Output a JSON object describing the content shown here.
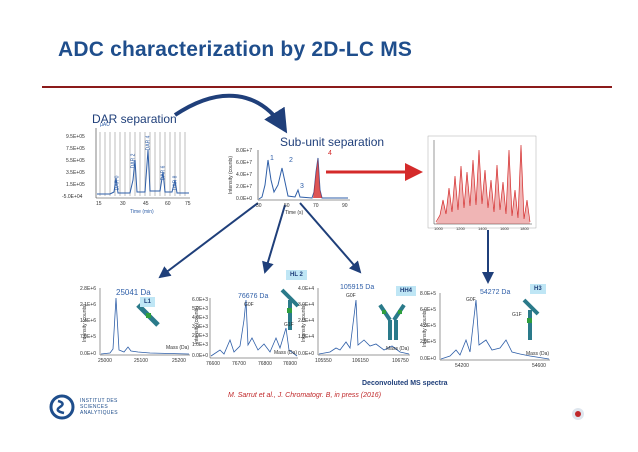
{
  "title": "ADC characterization by 2D-LC MS",
  "labels": {
    "dar": "DAR separation",
    "subunit": "Sub-unit separation",
    "deconv": "Deconvoluted MS spectra",
    "citation": "M. Sarrut et al., J. Chromatogr. B, in press (2016)"
  },
  "dar_chart": {
    "unit": "µAU",
    "yticks": [
      "9.5E+05",
      "7.5E+05",
      "5.5E+05",
      "3.5E+05",
      "1.5E+05",
      "-5.0E+04"
    ],
    "xticks": [
      "15",
      "30",
      "45",
      "60",
      "75"
    ],
    "xlabel": "Time (min)",
    "peaks": [
      "DAR 0",
      "DAR 2",
      "DAR 4",
      "DAR 6",
      "DAR 8"
    ]
  },
  "subunit_chart": {
    "yticks": [
      "8.0E+7",
      "6.0E+7",
      "4.0E+7",
      "2.0E+7",
      "0.0E+0"
    ],
    "xticks": [
      "30",
      "50",
      "70",
      "90"
    ],
    "xlabel": "Time (s)",
    "ylabel": "Intensity (counts)",
    "peaks": [
      "1",
      "2",
      "3",
      "4"
    ]
  },
  "ms_panels": [
    {
      "mass": "25041 Da",
      "tag": "L1",
      "yticks": [
        "2.8E+6",
        "2.1E+6",
        "1.4E+6",
        "7.0E+5",
        "0.0E+0"
      ],
      "xticks": [
        "25000",
        "25100",
        "25200"
      ],
      "xlabel": "Mass (Da)",
      "ylabel": "Intensity (counts)",
      "glycans": []
    },
    {
      "mass": "76676 Da",
      "tag": "HL 2",
      "yticks": [
        "6.0E+3",
        "5.0E+3",
        "4.0E+3",
        "3.0E+3",
        "2.0E+3",
        "1.0E+3",
        "0.0E+0"
      ],
      "xticks": [
        "76600",
        "76700",
        "76800",
        "76900"
      ],
      "xlabel": "Mass (Da)",
      "ylabel": "Intensity (counts)",
      "glycans": [
        "G0F",
        "G1F"
      ]
    },
    {
      "mass": "105915 Da",
      "tag": "HH4",
      "yticks": [
        "4.0E+4",
        "3.0E+4",
        "2.0E+4",
        "1.0E+4",
        "0.0E+0"
      ],
      "xticks": [
        "105550",
        "106150",
        "106750"
      ],
      "xlabel": "Mass (Da)",
      "ylabel": "Intensity (counts)",
      "glycans": [
        "G0F"
      ]
    },
    {
      "mass": "54272 Da",
      "tag": "H3",
      "yticks": [
        "8.0E+5",
        "6.0E+5",
        "4.0E+5",
        "2.0E+5",
        "0.0E+0"
      ],
      "xticks": [
        "54200",
        "54600"
      ],
      "xlabel": "Mass (Da)",
      "ylabel": "Intensity (counts)",
      "glycans": [
        "G0F",
        "G1F"
      ]
    }
  ],
  "raw_ms_xticks": [
    "1000",
    "1200",
    "1400",
    "1600",
    "1800"
  ],
  "institute": [
    "INSTITUT DES",
    "SCIENCES",
    "ANALYTIQUES"
  ],
  "colors": {
    "title": "#1f4e8c",
    "rule": "#8b1a1a",
    "arrow": "#1f3f7a",
    "red": "#d42a2a",
    "tag": "#bfe6f5"
  }
}
